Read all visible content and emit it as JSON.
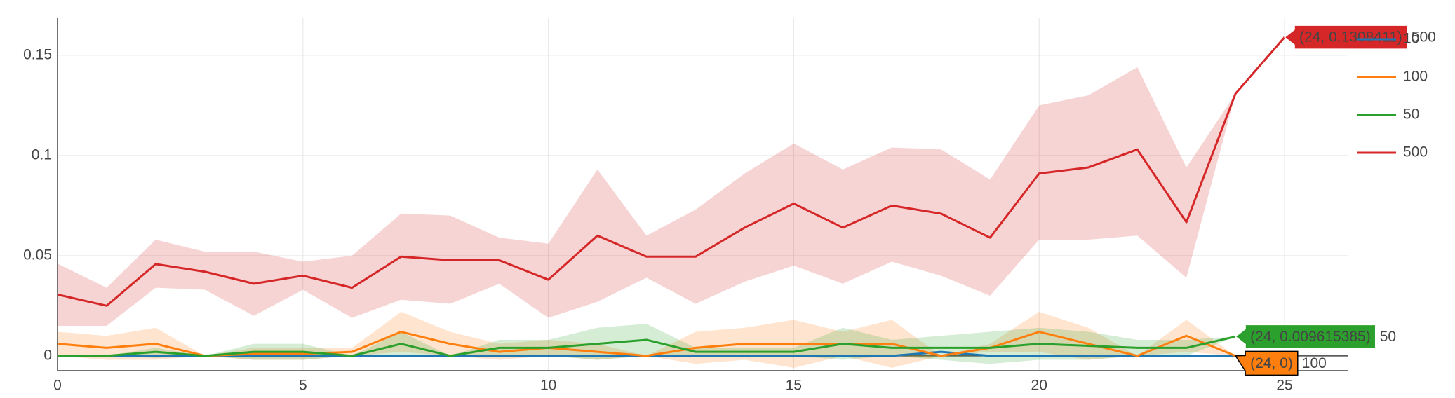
{
  "chart_data": {
    "type": "line",
    "x": [
      0,
      1,
      2,
      3,
      4,
      5,
      6,
      7,
      8,
      9,
      10,
      11,
      12,
      13,
      14,
      15,
      16,
      17,
      18,
      19,
      20,
      21,
      22,
      23,
      24,
      25
    ],
    "xlim": [
      0,
      26.3
    ],
    "xticks": [
      0,
      5,
      10,
      15,
      20,
      25
    ],
    "ylim": [
      -0.0074,
      0.1685
    ],
    "yticks": [
      0,
      0.05,
      0.1,
      0.15
    ],
    "grid": true,
    "legend": "right",
    "series": [
      {
        "name": "10",
        "color": "#1f77b4",
        "values": [
          0,
          0,
          0,
          0,
          0,
          0,
          0,
          0,
          0,
          0,
          0,
          0,
          0,
          0,
          0,
          0,
          0,
          0,
          0.002,
          0,
          0,
          0,
          0,
          0,
          0,
          null
        ]
      },
      {
        "name": "100",
        "color": "#ff7f0e",
        "hover": "(24, 0)",
        "values": [
          0.006,
          0.004,
          0.006,
          0,
          0.001,
          0.001,
          0.002,
          0.012,
          0.006,
          0.002,
          0.004,
          0.002,
          0,
          0.004,
          0.006,
          0.006,
          0.006,
          0.006,
          0,
          0.004,
          0.012,
          0.006,
          0,
          0.01,
          0,
          null
        ],
        "upper": [
          0.012,
          0.01,
          0.014,
          0,
          0.004,
          0.004,
          0.004,
          0.022,
          0.012,
          0.006,
          0.008,
          0.006,
          0,
          0.012,
          0.014,
          0.018,
          0.012,
          0.018,
          0,
          0.006,
          0.022,
          0.014,
          0,
          0.018,
          0,
          null
        ],
        "lower": [
          0,
          -0.002,
          -0.002,
          0,
          -0.002,
          -0.002,
          0,
          0.002,
          0,
          -0.002,
          0,
          -0.002,
          0,
          -0.004,
          -0.002,
          -0.006,
          0,
          -0.006,
          0,
          0.002,
          0.002,
          -0.002,
          0,
          0.002,
          0,
          null
        ]
      },
      {
        "name": "50",
        "color": "#2ca02c",
        "hover": "(24, 0.009615385)",
        "values": [
          0,
          0,
          0.002,
          0,
          0.002,
          0.002,
          0,
          0.006,
          0,
          0.004,
          0.004,
          0.006,
          0.008,
          0.002,
          0.002,
          0.002,
          0.006,
          0.004,
          0.004,
          0.004,
          0.006,
          0.005,
          0.004,
          0.004,
          0.009615385,
          null
        ],
        "upper": [
          0,
          0,
          0.004,
          0,
          0.006,
          0.006,
          0,
          0.012,
          0,
          0.008,
          0.008,
          0.014,
          0.016,
          0.004,
          0.004,
          0.004,
          0.014,
          0.008,
          0.01,
          0.012,
          0.014,
          0.012,
          0.008,
          0.008,
          0.009615385,
          null
        ],
        "lower": [
          0,
          0,
          -0.001,
          0,
          -0.002,
          -0.002,
          0,
          0,
          0,
          0,
          0,
          -0.002,
          0,
          0,
          0,
          0,
          -0.002,
          0,
          -0.002,
          -0.004,
          -0.002,
          -0.002,
          0,
          0,
          0.009615385,
          null
        ]
      },
      {
        "name": "500",
        "color": "#d62728",
        "hover": "(24, 0.1308411)",
        "values": [
          0.0306,
          0.025,
          0.0458,
          0.042,
          0.036,
          0.04,
          0.034,
          0.0495,
          0.0477,
          0.0477,
          0.038,
          0.06,
          0.0495,
          0.0495,
          0.064,
          0.076,
          0.064,
          0.075,
          0.071,
          0.059,
          0.091,
          0.094,
          0.103,
          0.0667,
          0.1308411,
          0.159
        ],
        "upper": [
          0.046,
          0.034,
          0.058,
          0.052,
          0.052,
          0.047,
          0.05,
          0.071,
          0.07,
          0.059,
          0.056,
          0.093,
          0.06,
          0.073,
          0.091,
          0.106,
          0.093,
          0.104,
          0.103,
          0.088,
          0.125,
          0.13,
          0.144,
          0.094,
          0.1308411,
          0.159
        ],
        "lower": [
          0.015,
          0.015,
          0.034,
          0.033,
          0.02,
          0.033,
          0.019,
          0.028,
          0.026,
          0.036,
          0.019,
          0.027,
          0.039,
          0.026,
          0.037,
          0.045,
          0.036,
          0.047,
          0.04,
          0.03,
          0.058,
          0.058,
          0.06,
          0.039,
          0.1308411,
          0.159
        ]
      }
    ]
  }
}
